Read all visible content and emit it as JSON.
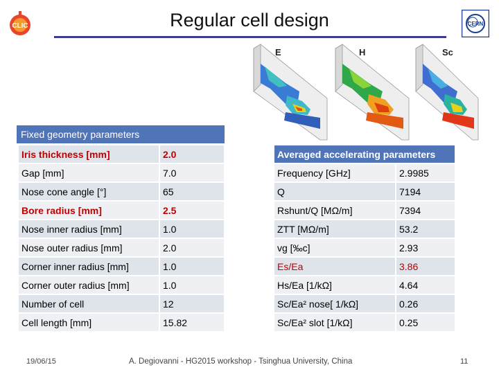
{
  "title": "Regular cell design",
  "sim_labels": {
    "e": "E",
    "h": "H",
    "sc": "Sc"
  },
  "geometry": {
    "header": "Fixed geometry parameters",
    "rows": [
      {
        "label": "Iris thickness [mm]",
        "value": "2.0",
        "highlight": true
      },
      {
        "label": "Gap [mm]",
        "value": "7.0",
        "highlight": false
      },
      {
        "label": "Nose cone angle [°]",
        "value": "65",
        "highlight": false
      },
      {
        "label": "Bore radius [mm]",
        "value": "2.5",
        "highlight": true
      },
      {
        "label": "Nose inner radius [mm]",
        "value": "1.0",
        "highlight": false
      },
      {
        "label": "Nose outer radius [mm]",
        "value": "2.0",
        "highlight": false
      },
      {
        "label": "Corner inner radius [mm]",
        "value": "1.0",
        "highlight": false
      },
      {
        "label": "Corner outer radius [mm]",
        "value": "1.0",
        "highlight": false
      },
      {
        "label": "Number of cell",
        "value": "12",
        "highlight": false
      },
      {
        "label": "Cell length [mm]",
        "value": "15.82",
        "highlight": false
      }
    ]
  },
  "accelerating": {
    "header": "Averaged accelerating parameters",
    "rows": [
      {
        "label": "Frequency [GHz]",
        "value": "2.9985",
        "highlight": false
      },
      {
        "label": "Q",
        "value": "7194",
        "highlight": false
      },
      {
        "label": "Rshunt/Q [MΩ/m]",
        "value": "7394",
        "highlight": false
      },
      {
        "label": "ZTT [MΩ/m]",
        "value": "53.2",
        "highlight": false
      },
      {
        "label": "vg [‰c]",
        "value": "2.93",
        "highlight": false
      },
      {
        "label": "Es/Ea",
        "value": "3.86",
        "highlight": true
      },
      {
        "label": "Hs/Ea [1/kΩ]",
        "value": "4.64",
        "highlight": false
      },
      {
        "label": "Sc/Ea² nose[ 1/kΩ]",
        "value": "0.26",
        "highlight": false
      },
      {
        "label": "Sc/Ea² slot [1/kΩ]",
        "value": "0.25",
        "highlight": false
      }
    ]
  },
  "footer": {
    "date": "19/06/15",
    "author": "A. Degiovanni - HG2015 workshop - Tsinghua University, China",
    "page": "11"
  },
  "logos": {
    "left": "CLIC",
    "right": "CERN"
  },
  "colors": {
    "header_blue": "#4f74b8",
    "highlight_red": "#c00000",
    "rule": "#3b3b8f"
  }
}
